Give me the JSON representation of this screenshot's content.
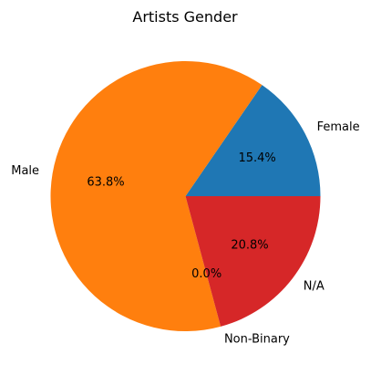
{
  "chart_data": {
    "type": "pie",
    "title": "Artists Gender",
    "slices": [
      {
        "label": "Female",
        "value": 15.4,
        "pct_label": "15.4%",
        "color": "#1f77b4"
      },
      {
        "label": "Male",
        "value": 63.8,
        "pct_label": "63.8%",
        "color": "#ff7f0e"
      },
      {
        "label": "Non-Binary",
        "value": 0.0,
        "pct_label": "0.0%",
        "color": "#2ca02c"
      },
      {
        "label": "N/A",
        "value": 20.8,
        "pct_label": "20.8%",
        "color": "#d62728"
      }
    ],
    "start_angle_deg": 0,
    "direction": "counterclockwise"
  }
}
